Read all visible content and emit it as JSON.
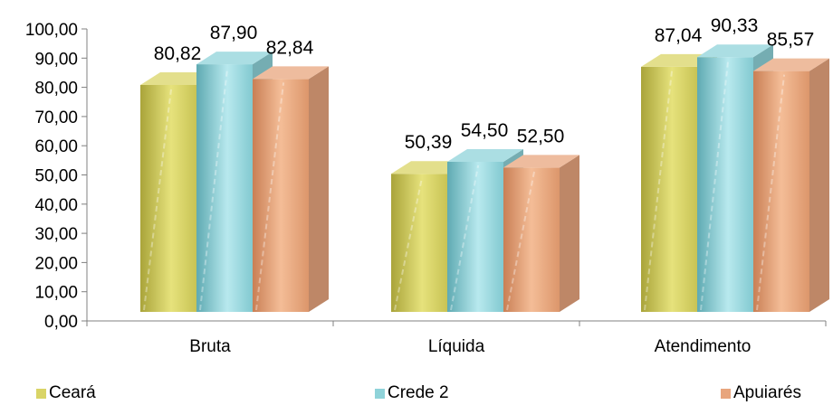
{
  "chart_data": {
    "type": "bar",
    "style": "3d-columns",
    "categories": [
      "Bruta",
      "Líquida",
      "Atendimento"
    ],
    "series": [
      {
        "name": "Ceará",
        "values": [
          80.82,
          50.39,
          87.04
        ],
        "labels": [
          "80,82",
          "50,39",
          "87,04"
        ],
        "color": "#d9d466"
      },
      {
        "name": "Crede 2",
        "values": [
          87.9,
          54.5,
          90.33
        ],
        "labels": [
          "87,90",
          "54,50",
          "90,33"
        ],
        "color": "#8fd3d9"
      },
      {
        "name": "Apuiarés",
        "values": [
          82.84,
          52.5,
          85.57
        ],
        "labels": [
          "82,84",
          "52,50",
          "85,57"
        ],
        "color": "#e8a57d"
      }
    ],
    "ylim": [
      0,
      100
    ],
    "yticks": [
      0,
      10,
      20,
      30,
      40,
      50,
      60,
      70,
      80,
      90,
      100
    ],
    "ytick_labels": [
      "0,00",
      "10,00",
      "20,00",
      "30,00",
      "40,00",
      "50,00",
      "60,00",
      "70,00",
      "80,00",
      "90,00",
      "100,00"
    ],
    "grid": false,
    "legend_position": "bottom",
    "title": "",
    "xlabel": "",
    "ylabel": ""
  }
}
